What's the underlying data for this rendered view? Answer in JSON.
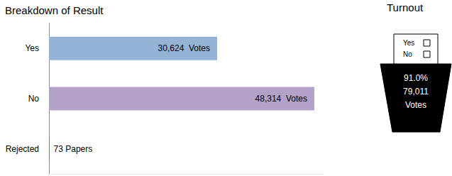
{
  "chart_data": {
    "type": "bar",
    "title": "Breakdown of Result",
    "orientation": "horizontal",
    "categories": [
      "Yes",
      "No",
      "Rejected"
    ],
    "values": [
      30624,
      48314,
      73
    ],
    "value_labels": [
      "30,624  Votes",
      "48,314  Votes",
      "73 Papers"
    ],
    "colors": [
      "#95b3d7",
      "#b3a2c7",
      "#c0504d"
    ],
    "xlim": [
      0,
      50000
    ],
    "grid": false,
    "data_labels": true,
    "tick_labels": "y"
  },
  "turnout": {
    "title": "Turnout",
    "ballot_options": [
      "Yes",
      "No"
    ],
    "percent": "91.0%",
    "votes": "79,011",
    "unit": "Votes"
  }
}
